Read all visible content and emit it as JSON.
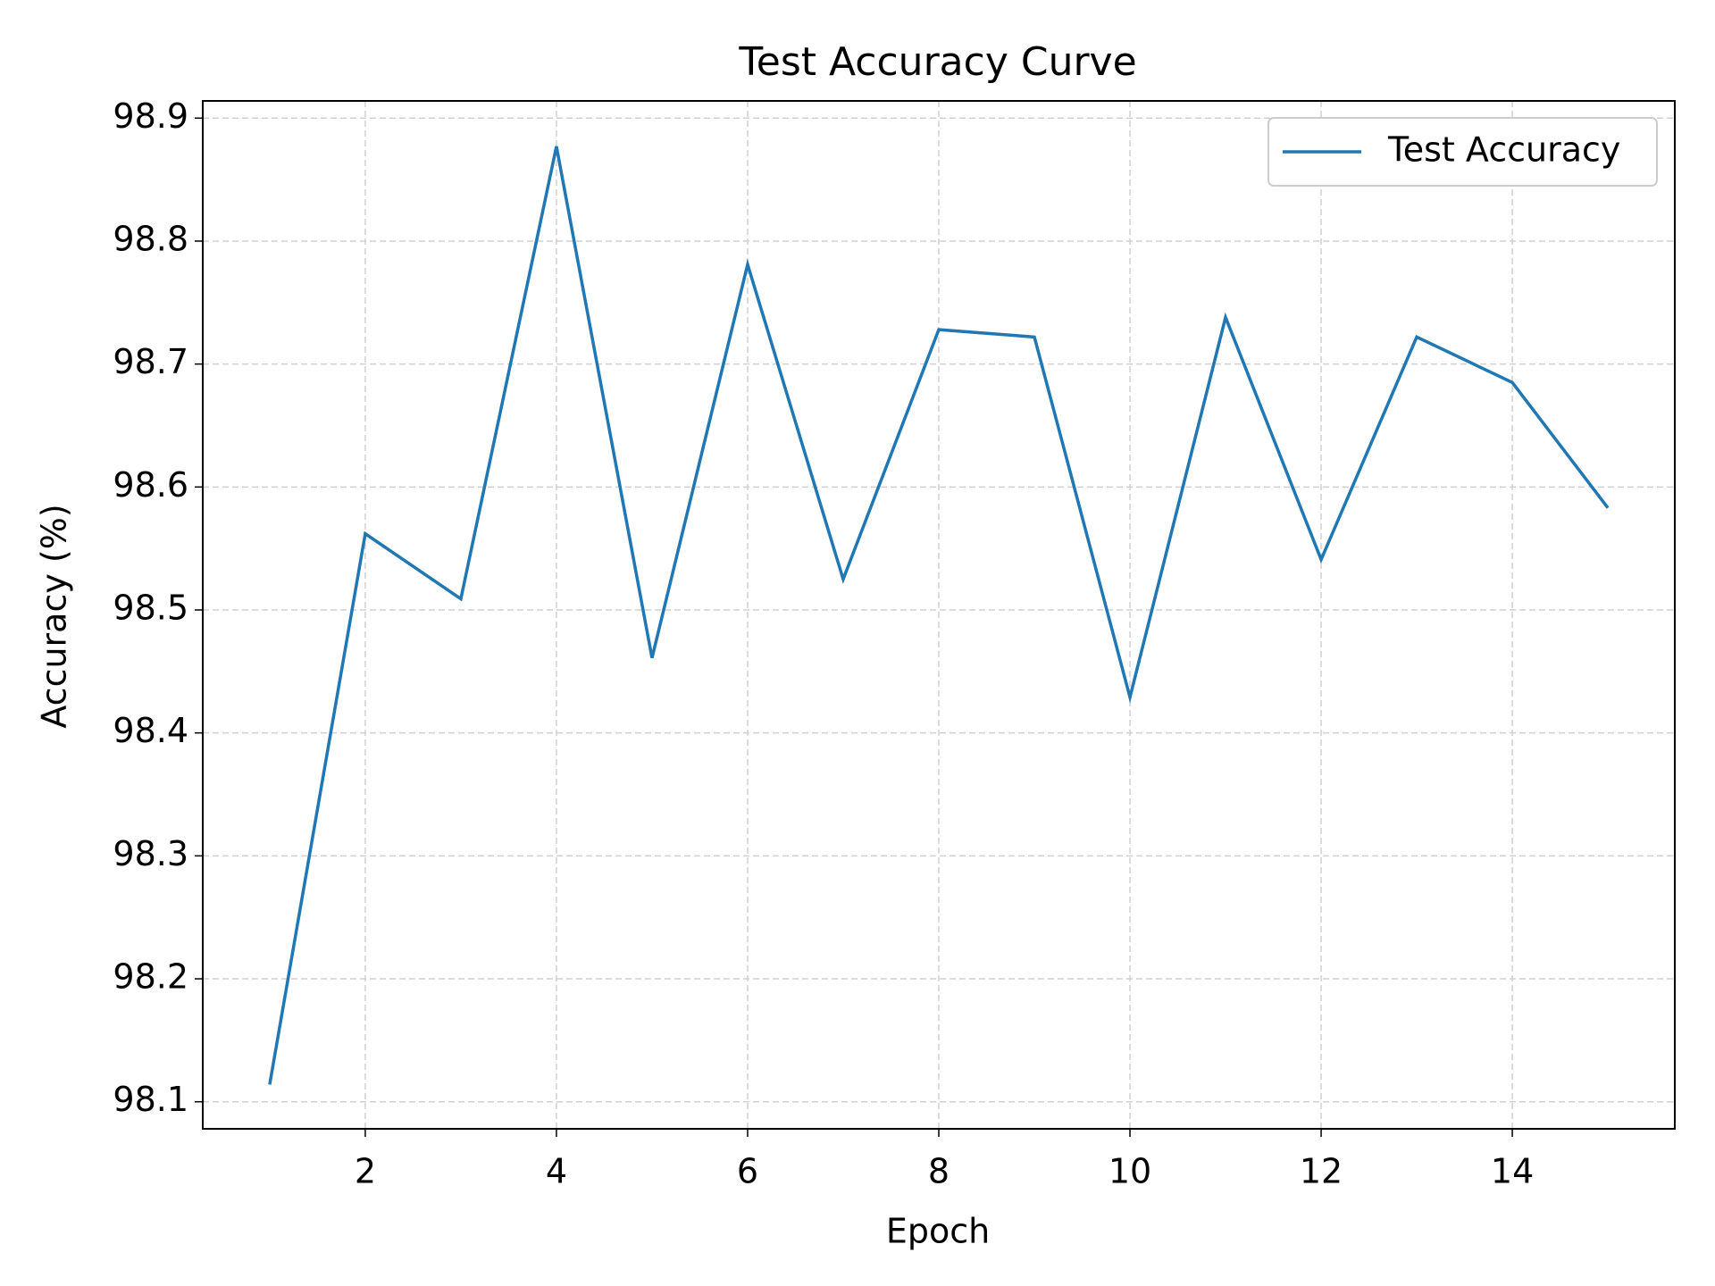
{
  "chart_data": {
    "type": "line",
    "title": "Test Accuracy Curve",
    "x_label": "Epoch",
    "y_label": "Accuracy (%)",
    "x": [
      1,
      2,
      3,
      4,
      5,
      6,
      7,
      8,
      9,
      10,
      11,
      12,
      13,
      14,
      15
    ],
    "series": [
      {
        "name": "Test Accuracy",
        "color": "#1f77b4",
        "values": [
          98.114,
          98.562,
          98.509,
          98.877,
          98.461,
          98.781,
          98.525,
          98.728,
          98.722,
          98.429,
          98.738,
          98.541,
          98.722,
          98.685,
          98.583
        ]
      }
    ],
    "xlim": [
      0.3,
      15.7
    ],
    "ylim": [
      98.078,
      98.914
    ],
    "xticks": [
      2,
      4,
      6,
      8,
      10,
      12,
      14
    ],
    "yticks": [
      98.1,
      98.2,
      98.3,
      98.4,
      98.5,
      98.6,
      98.7,
      98.8,
      98.9
    ],
    "grid": true,
    "legend": "upper right"
  }
}
